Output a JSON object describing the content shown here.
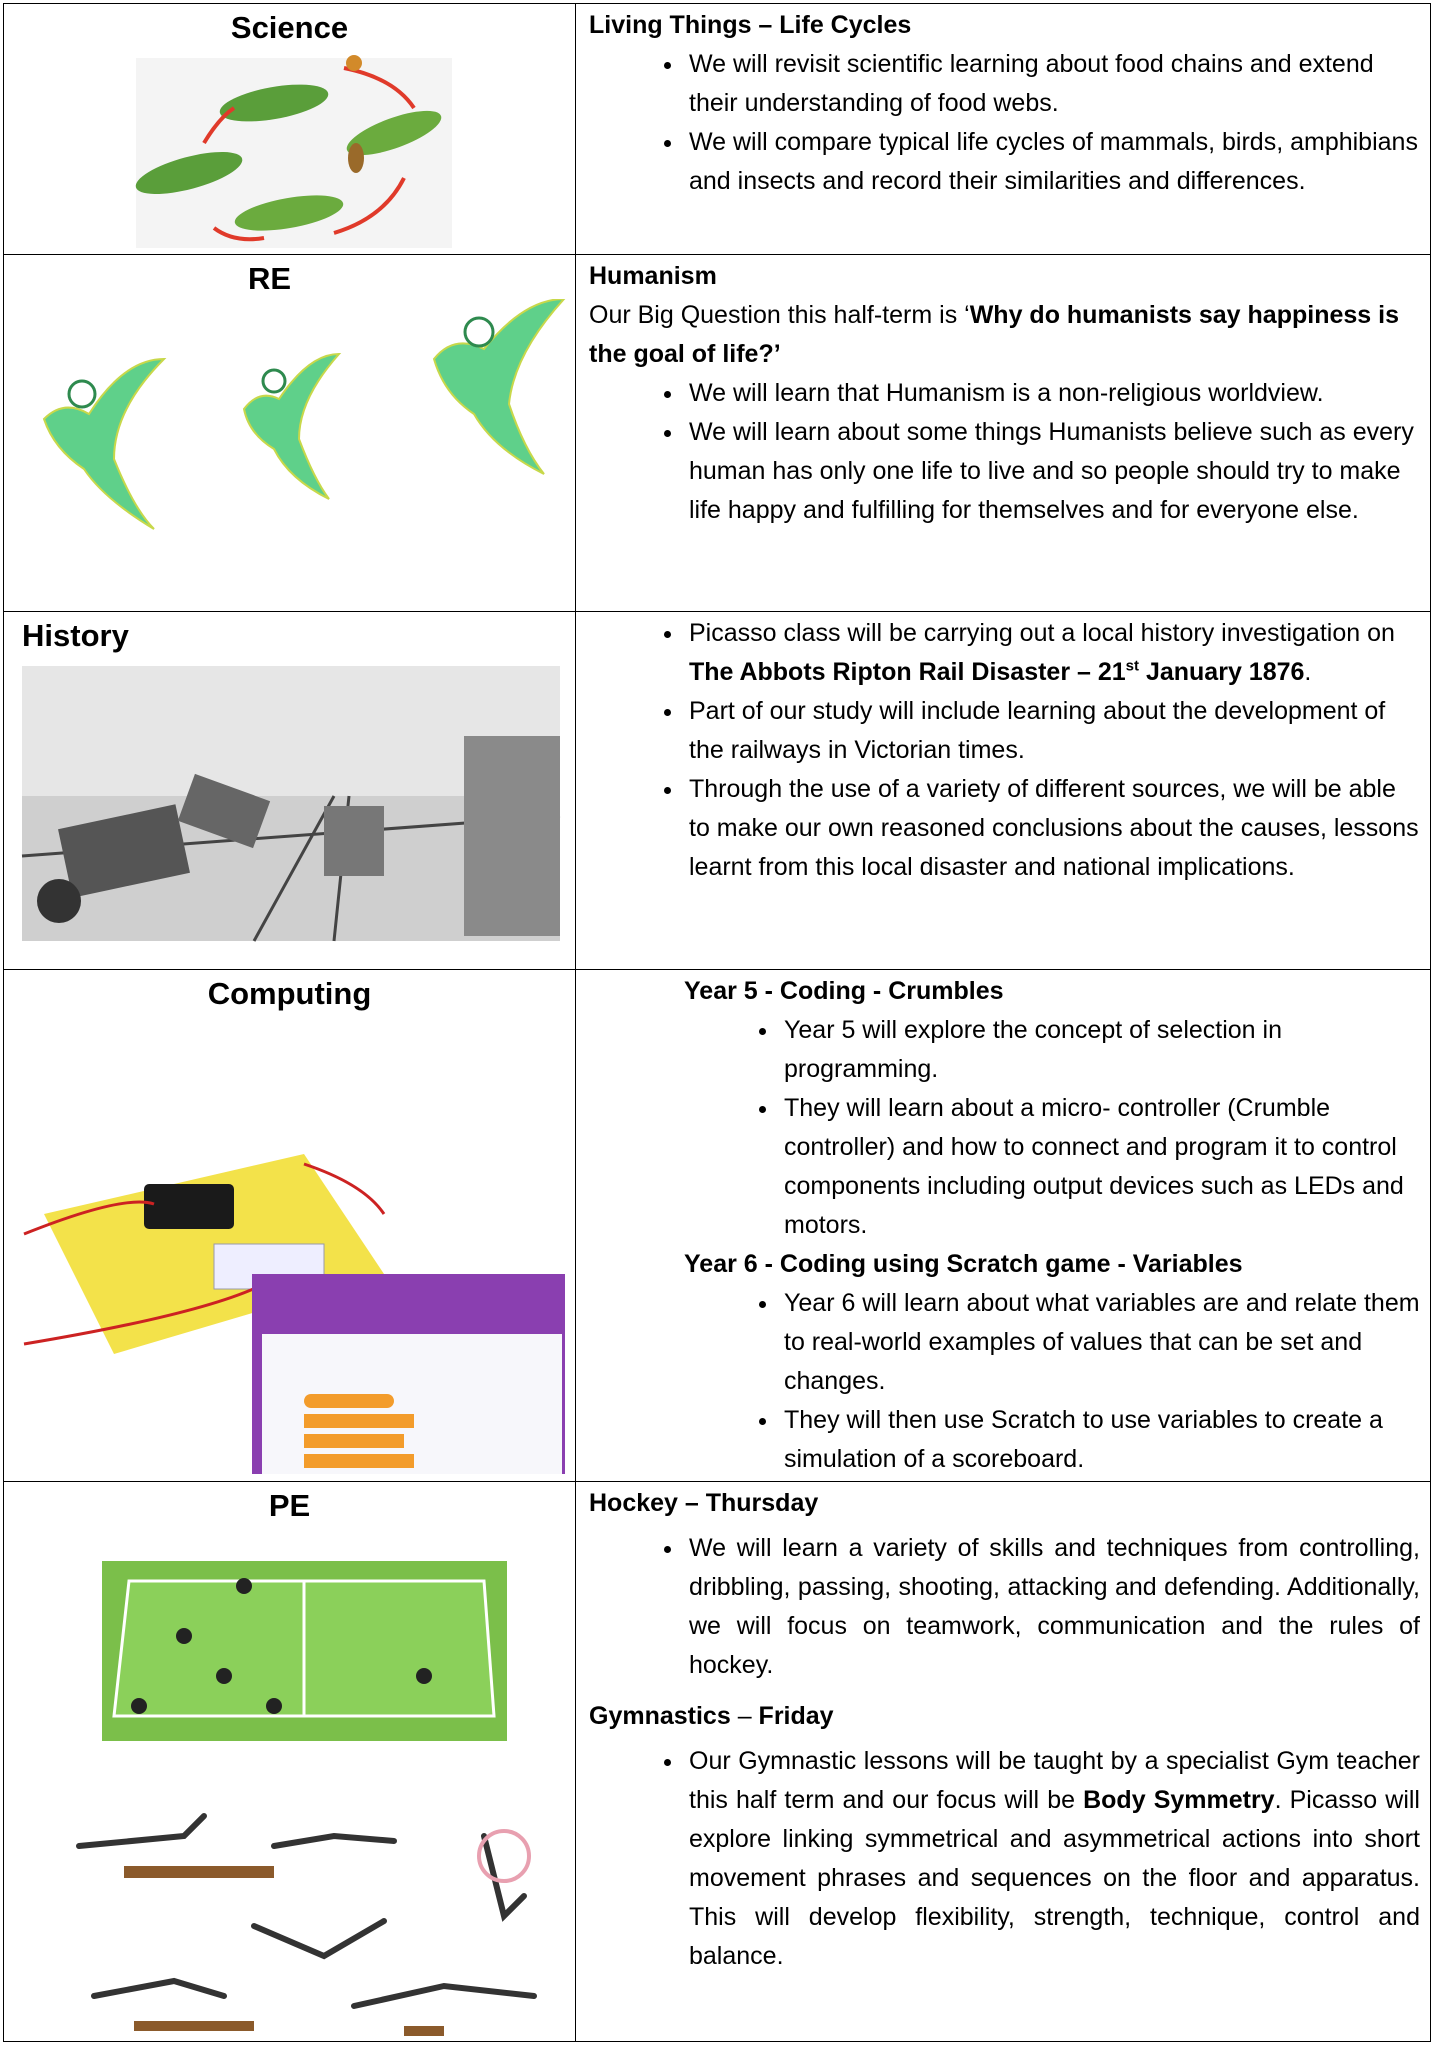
{
  "rows": [
    {
      "subject": "Science",
      "blocks": [
        {
          "p": [
            {
              "text": "Living Things – Life Cycles",
              "bold": true
            }
          ]
        },
        {
          "ul": [
            [
              {
                "text": "We will revisit scientific learning about food chains and extend their understanding of food webs."
              }
            ],
            [
              {
                "text": "We will compare typical life cycles of mammals, birds, amphibians and insects and record their similarities and differences."
              }
            ]
          ]
        }
      ]
    },
    {
      "subject": "RE",
      "blocks": [
        {
          "p": [
            {
              "text": "Humanism",
              "bold": true
            }
          ]
        },
        {
          "p": [
            {
              "text": "Our Big Question this half-term is ‘"
            },
            {
              "text": "Why do humanists say happiness is the goal of life?’",
              "bold": true
            }
          ]
        },
        {
          "ul": [
            [
              {
                "text": "We will learn that Humanism is a non-religious worldview."
              }
            ],
            [
              {
                "text": "We will learn about some things Humanists believe such as every human has only one life to live and so people should try to make life happy and fulfilling for themselves and for everyone else."
              }
            ]
          ]
        }
      ]
    },
    {
      "subject": "History",
      "blocks": [
        {
          "ul": [
            [
              {
                "text": "Picasso class will be carrying out a local history investigation on "
              },
              {
                "text": "The Abbots Ripton Rail Disaster – 21",
                "bold": true
              },
              {
                "text": "st",
                "bold": true,
                "sup": true
              },
              {
                "text": " January 1876",
                "bold": true
              },
              {
                "text": "."
              }
            ],
            [
              {
                "text": "Part of our study will include learning about the development of the railways in Victorian times."
              }
            ],
            [
              {
                "text": "Through the use of a variety of different sources, we will be able to make our own reasoned conclusions about the causes, lessons learnt from this local disaster and national implications."
              }
            ]
          ]
        }
      ]
    },
    {
      "subject": "Computing",
      "blocks": [
        {
          "p": [
            {
              "text": "Year 5 - Coding - Crumbles",
              "bold": true
            }
          ]
        },
        {
          "ul": [
            [
              {
                "text": "Year 5 will explore the concept of selection in programming."
              }
            ],
            [
              {
                "text": "They will learn about a micro- controller (Crumble controller) and how to connect and program it to control components including output devices such as LEDs and motors."
              }
            ]
          ]
        },
        {
          "p": [
            {
              "text": "Year 6 - Coding using Scratch game - Variables",
              "bold": true
            }
          ]
        },
        {
          "ul": [
            [
              {
                "text": "Year 6 will learn about what variables are and relate them to real-world examples of values that can be set and changes."
              }
            ],
            [
              {
                "text": "They will then use Scratch to use variables to create a simulation of a scoreboard."
              }
            ]
          ]
        }
      ]
    },
    {
      "subject": "PE",
      "blocks": [
        {
          "p": [
            {
              "text": "Hockey – Thursday",
              "bold": true
            }
          ]
        },
        {
          "ul": [
            [
              {
                "text": "We will learn a variety of skills and techniques from controlling, dribbling, passing, shooting, attacking and defending.  Additionally, we will focus on teamwork, communication and the rules of hockey."
              }
            ]
          ]
        },
        {
          "p": [
            {
              "text": "Gymnastics",
              "bold": true
            },
            {
              "text": " – "
            },
            {
              "text": "Friday",
              "bold": true
            }
          ]
        },
        {
          "ul": [
            [
              {
                "text": "Our Gymnastic lessons will be taught by a specialist Gym teacher this half term and our focus will be "
              },
              {
                "text": "Body Symmetry",
                "bold": true
              },
              {
                "text": ". Picasso will explore linking symmetrical and asymmetrical actions into short movement phrases and sequences on the floor and apparatus.  This will develop flexibility, strength, technique, control and balance."
              }
            ]
          ]
        }
      ]
    }
  ]
}
